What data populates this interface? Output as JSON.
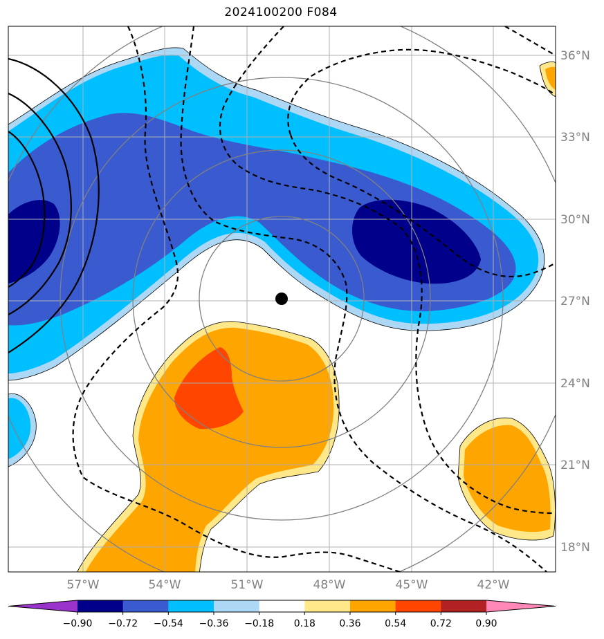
{
  "title": "2024100200 F084",
  "map": {
    "lat_labels": [
      "36°N",
      "33°N",
      "30°N",
      "27°N",
      "24°N",
      "21°N",
      "18°N"
    ],
    "lon_labels": [
      "57°W",
      "54°W",
      "51°W",
      "48°W",
      "45°W",
      "42°W"
    ],
    "lat_range": [
      17,
      37
    ],
    "lon_range": [
      -60,
      -40
    ],
    "storm_center": {
      "lon": "49.8°W",
      "lat": "27.1°N"
    }
  },
  "colorbar": {
    "levels": [
      "−0.90",
      "−0.72",
      "−0.54",
      "−0.36",
      "−0.18",
      "0.18",
      "0.36",
      "0.54",
      "0.72",
      "0.90"
    ],
    "colors": [
      "#9933cc",
      "#00008b",
      "#3a5bcf",
      "#00bfff",
      "#add8f5",
      "#ffffff",
      "#ffe88a",
      "#ffa500",
      "#ff4500",
      "#b22222",
      "#ff88b8"
    ]
  }
}
